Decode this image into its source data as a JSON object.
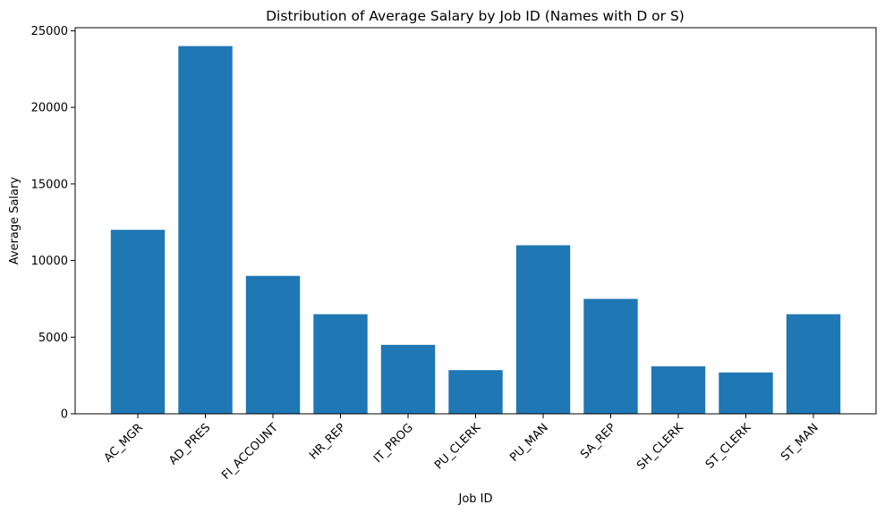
{
  "chart_data": {
    "type": "bar",
    "title": "Distribution of Average Salary by Job ID (Names with D or S)",
    "xlabel": "Job ID",
    "ylabel": "Average Salary",
    "categories": [
      "AC_MGR",
      "AD_PRES",
      "FI_ACCOUNT",
      "HR_REP",
      "IT_PROG",
      "PU_CLERK",
      "PU_MAN",
      "SA_REP",
      "SH_CLERK",
      "ST_CLERK",
      "ST_MAN"
    ],
    "values": [
      12008,
      24000,
      9000,
      6500,
      4500,
      2850,
      11000,
      7500,
      3100,
      2700,
      6500
    ],
    "ylim": [
      0,
      25200
    ],
    "yticks": [
      0,
      5000,
      10000,
      15000,
      20000,
      25000
    ],
    "color": "#1f77b4",
    "grid": false,
    "legend": "none"
  }
}
